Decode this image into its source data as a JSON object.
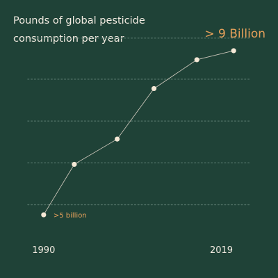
{
  "colors": {
    "background": "#1f4237",
    "text": "#f2ebe1",
    "accent": "#e7a15b",
    "line": "#c9c4b8",
    "marker": "#f5e8d6",
    "grid": "#4f7065"
  },
  "header": {
    "title_line1": "Pounds of global pesticide",
    "title_line2": "consumption per year",
    "highlight": "> 9 Billion"
  },
  "chart_data": {
    "type": "line",
    "title": "Pounds of global pesticide consumption per year",
    "x": [
      1990,
      1995,
      2002,
      2008,
      2015,
      2021
    ],
    "y": [
      5.0,
      6.4,
      7.1,
      8.5,
      9.3,
      9.55
    ],
    "ylim": [
      4.5,
      9.8
    ],
    "xlim": [
      1989,
      2022
    ],
    "y_gridlines": [
      5.28,
      6.44,
      7.6,
      8.76,
      9.9
    ],
    "grid": true,
    "grid_style": "dotted horizontal",
    "x_tick_labels": [
      {
        "x": 1990,
        "label": "1990"
      },
      {
        "x": 2019,
        "label": "2019"
      }
    ],
    "annotations": [
      {
        "x": 1990,
        "y": 5.0,
        "text": ">5 billion"
      }
    ],
    "legend": "none"
  }
}
